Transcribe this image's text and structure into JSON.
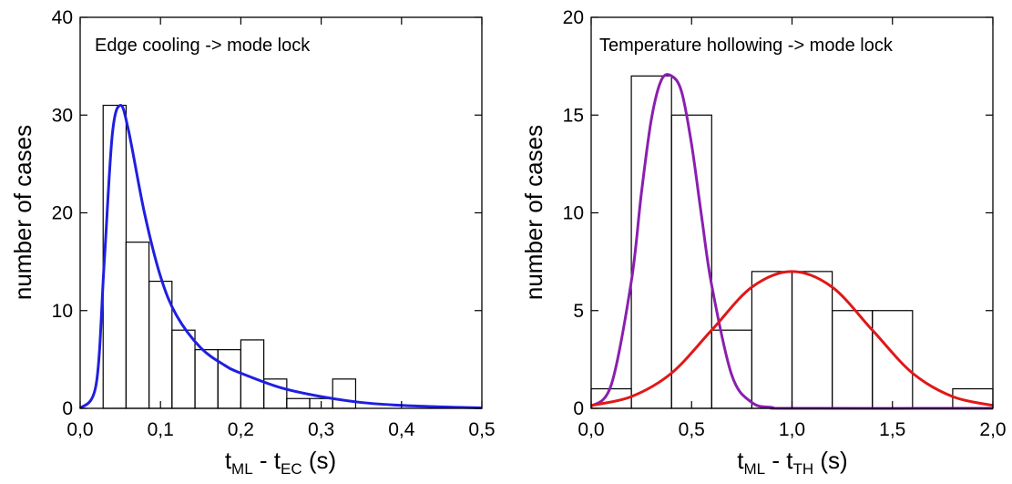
{
  "chart_data": [
    {
      "type": "bar",
      "annotation": "Edge cooling -> mode lock",
      "xlabel": {
        "t1": "t",
        "s1": "ML",
        "mid": " - t",
        "s2": "EC",
        "end": " (s)"
      },
      "ylabel": "number of cases",
      "xlim": [
        0,
        0.5
      ],
      "ylim": [
        0,
        40
      ],
      "xticks": [
        0,
        0.1,
        0.2,
        0.3,
        0.4,
        0.5
      ],
      "xtick_labels": [
        "0,0",
        "0,1",
        "0,2",
        "0,3",
        "0,4",
        "0,5"
      ],
      "yticks": [
        0,
        10,
        20,
        30,
        40
      ],
      "ytick_labels": [
        "0",
        "10",
        "20",
        "30",
        "40"
      ],
      "bin_width": 0.0286,
      "bins": [
        {
          "x": 0.0286,
          "value": 31
        },
        {
          "x": 0.0571,
          "value": 17
        },
        {
          "x": 0.0857,
          "value": 13
        },
        {
          "x": 0.1143,
          "value": 8
        },
        {
          "x": 0.1429,
          "value": 6
        },
        {
          "x": 0.1714,
          "value": 6
        },
        {
          "x": 0.2,
          "value": 7
        },
        {
          "x": 0.2286,
          "value": 3
        },
        {
          "x": 0.2571,
          "value": 1
        },
        {
          "x": 0.2857,
          "value": 1
        },
        {
          "x": 0.3143,
          "value": 3
        }
      ],
      "fits": [
        {
          "color": "#1f1fe0",
          "x": [
            0,
            0.02,
            0.03,
            0.04,
            0.05,
            0.06,
            0.08,
            0.1,
            0.12,
            0.15,
            0.18,
            0.2,
            0.25,
            0.3,
            0.35,
            0.4,
            0.45,
            0.5
          ],
          "y": [
            0,
            2.5,
            15,
            28,
            31,
            28.5,
            20,
            13.5,
            9.5,
            6.2,
            4.4,
            3.6,
            2.1,
            1.2,
            0.6,
            0.3,
            0.15,
            0.05
          ]
        }
      ]
    },
    {
      "type": "bar",
      "annotation": "Temperature hollowing -> mode lock",
      "xlabel": {
        "t1": "t",
        "s1": "ML",
        "mid": " - t",
        "s2": "TH",
        "end": " (s)"
      },
      "ylabel": "number of cases",
      "xlim": [
        0,
        2.0
      ],
      "ylim": [
        0,
        20
      ],
      "xticks": [
        0,
        0.5,
        1.0,
        1.5,
        2.0
      ],
      "xtick_labels": [
        "0,0",
        "0,5",
        "1,0",
        "1,5",
        "2,0"
      ],
      "yticks": [
        0,
        5,
        10,
        15,
        20
      ],
      "ytick_labels": [
        "0",
        "5",
        "10",
        "15",
        "20"
      ],
      "bin_width": 0.2,
      "bins": [
        {
          "x": 0.0,
          "value": 1
        },
        {
          "x": 0.2,
          "value": 17
        },
        {
          "x": 0.4,
          "value": 15
        },
        {
          "x": 0.6,
          "value": 4
        },
        {
          "x": 0.8,
          "value": 7
        },
        {
          "x": 1.0,
          "value": 7
        },
        {
          "x": 1.2,
          "value": 5
        },
        {
          "x": 1.4,
          "value": 5
        },
        {
          "x": 1.6,
          "value": 0
        },
        {
          "x": 1.8,
          "value": 1
        }
      ],
      "fits": [
        {
          "color": "#8a1fb0",
          "x": [
            0,
            0.1,
            0.2,
            0.25,
            0.3,
            0.35,
            0.4,
            0.45,
            0.5,
            0.55,
            0.6,
            0.7,
            0.8,
            0.9,
            1.0,
            2.0
          ],
          "y": [
            0.1,
            1.2,
            6.5,
            11.0,
            14.8,
            16.8,
            17,
            16.2,
            13.5,
            9.8,
            6.3,
            1.7,
            0.3,
            0.05,
            0,
            0
          ]
        },
        {
          "color": "#e01818",
          "x": [
            0,
            0.2,
            0.4,
            0.6,
            0.8,
            1.0,
            1.2,
            1.4,
            1.6,
            1.8,
            2.0
          ],
          "y": [
            0.15,
            0.6,
            1.8,
            4.0,
            6.2,
            7,
            6.2,
            4.0,
            1.8,
            0.6,
            0.15
          ]
        }
      ]
    }
  ]
}
